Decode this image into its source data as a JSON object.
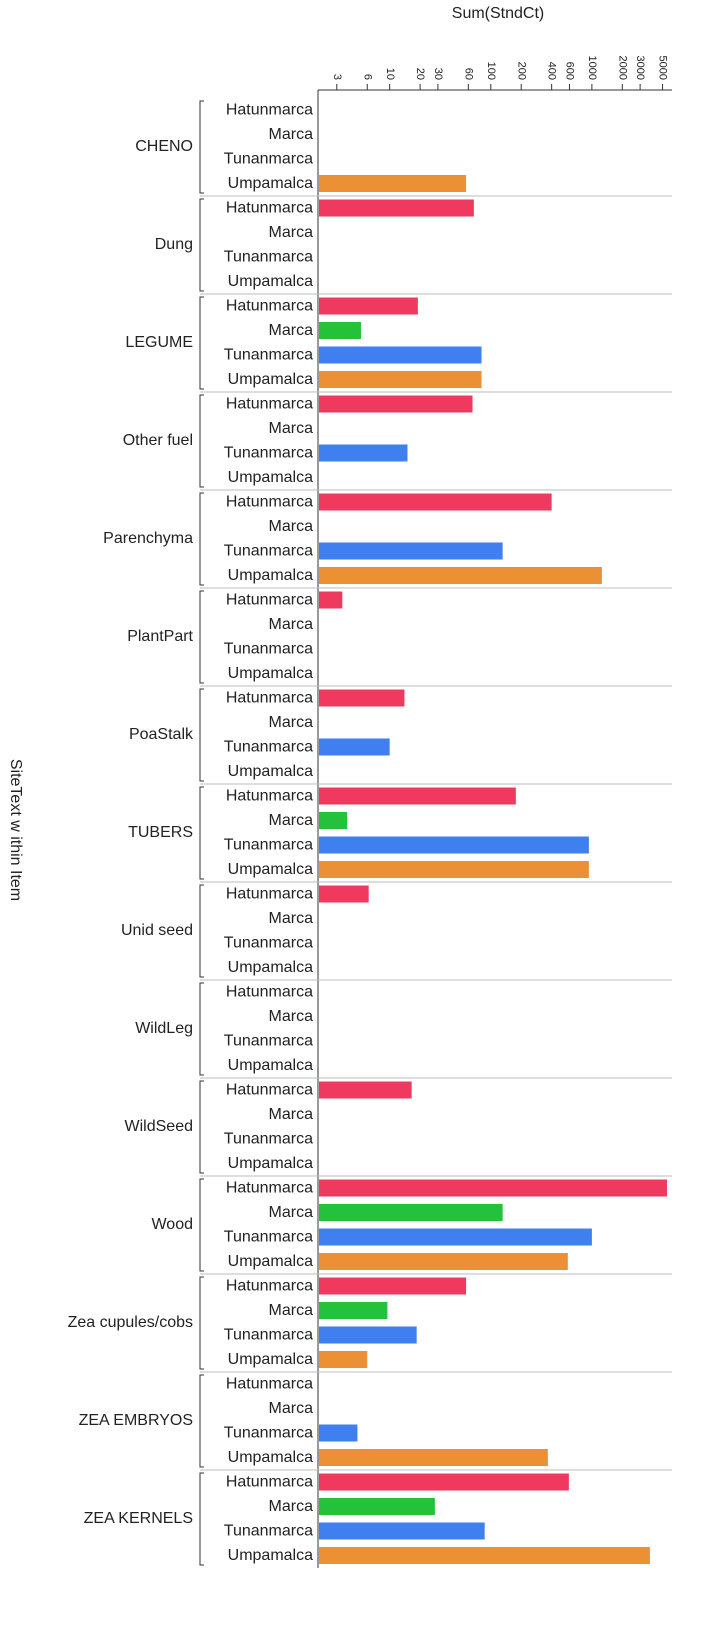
{
  "chart_data": {
    "type": "bar",
    "orientation": "horizontal",
    "x_label": "Sum(StndCt)",
    "y_label": "SiteText w ithin Item",
    "categories": [
      "CHENO",
      "Dung",
      "LEGUME",
      "Other fuel",
      "Parenchyma",
      "PlantPart",
      "PoaStalk",
      "TUBERS",
      "Unid seed",
      "WildLeg",
      "WildSeed",
      "Wood",
      "Zea cupules/cobs",
      "ZEA EMBRYOS",
      "ZEA KERNELS"
    ],
    "series": [
      {
        "name": "Hatunmarca",
        "color": "#f0395e",
        "values": [
          null,
          68,
          19,
          66,
          400,
          3.4,
          14,
          177,
          6.2,
          null,
          16.5,
          5530,
          57,
          null,
          592
        ]
      },
      {
        "name": "Marca",
        "color": "#23c23a",
        "values": [
          null,
          null,
          5.2,
          null,
          null,
          null,
          null,
          3.8,
          null,
          null,
          null,
          131,
          9.5,
          null,
          28
        ]
      },
      {
        "name": "Tunanmarca",
        "color": "#3f7ff0",
        "values": [
          null,
          null,
          81,
          15,
          131,
          null,
          10,
          934,
          null,
          null,
          null,
          1000,
          18.5,
          4.8,
          87
        ]
      },
      {
        "name": "Umpamalca",
        "color": "#ec9035",
        "values": [
          57,
          null,
          81,
          null,
          1256,
          null,
          null,
          934,
          null,
          null,
          null,
          578,
          6,
          367,
          3750
        ]
      }
    ],
    "xscale": "log",
    "xlim": [
      2,
      6200
    ],
    "xticks": [
      3,
      6,
      10,
      20,
      30,
      60,
      100,
      200,
      400,
      600,
      1000,
      2000,
      3000,
      5000
    ],
    "grid": false
  }
}
